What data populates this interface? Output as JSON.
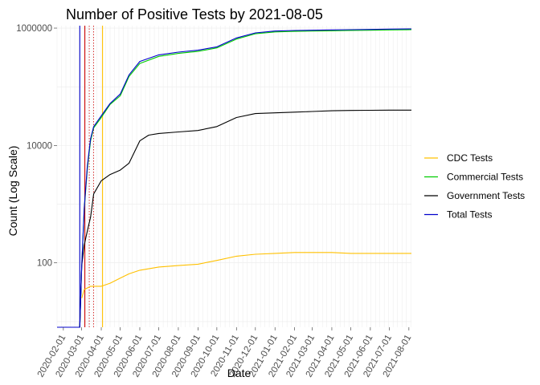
{
  "chart_data": {
    "type": "line",
    "title": "Number of Positive Tests by  2021-08-05",
    "xlabel": "Date",
    "ylabel": "Count (Log Scale)",
    "y_scale": "log10",
    "ylim": [
      8,
      1100000
    ],
    "yticks": [
      100,
      10000,
      1000000
    ],
    "ytick_labels": [
      "100",
      "10000",
      "1000000"
    ],
    "x_scale": "date",
    "xlim": [
      "2020-01-22",
      "2021-08-05"
    ],
    "x_tick_labels_note": "dense, overlapping, rotated ~60 degrees",
    "x_ticks": [
      "2020-02-01",
      "2020-03-01",
      "2020-04-01",
      "2020-05-01",
      "2020-06-01",
      "2020-07-01",
      "2020-08-01",
      "2020-09-01",
      "2020-10-01",
      "2020-11-01",
      "2020-12-01",
      "2021-01-01",
      "2021-02-01",
      "2021-03-01",
      "2021-04-01",
      "2021-05-01",
      "2021-06-01",
      "2021-07-01",
      "2021-08-01"
    ],
    "grid": true,
    "legend": {
      "position": "right"
    },
    "series": [
      {
        "name": "CDC Tests",
        "color": "#ffc000",
        "points": [
          [
            "2020-03-01",
            25
          ],
          [
            "2020-03-05",
            35
          ],
          [
            "2020-03-15",
            40
          ],
          [
            "2020-04-01",
            40
          ],
          [
            "2020-04-15",
            45
          ],
          [
            "2020-05-01",
            55
          ],
          [
            "2020-05-15",
            65
          ],
          [
            "2020-06-01",
            75
          ],
          [
            "2020-07-01",
            85
          ],
          [
            "2020-08-01",
            90
          ],
          [
            "2020-09-01",
            95
          ],
          [
            "2020-10-01",
            110
          ],
          [
            "2020-11-01",
            130
          ],
          [
            "2020-12-01",
            140
          ],
          [
            "2021-01-01",
            145
          ],
          [
            "2021-02-01",
            150
          ],
          [
            "2021-03-01",
            150
          ],
          [
            "2021-04-01",
            150
          ],
          [
            "2021-05-01",
            145
          ],
          [
            "2021-06-01",
            145
          ],
          [
            "2021-07-01",
            145
          ],
          [
            "2021-08-05",
            145
          ]
        ]
      },
      {
        "name": "Commercial Tests",
        "color": "#00cc00",
        "points": [
          [
            "2020-01-22",
            8
          ],
          [
            "2020-02-27",
            8
          ],
          [
            "2020-03-01",
            90
          ],
          [
            "2020-03-05",
            800
          ],
          [
            "2020-03-10",
            4000
          ],
          [
            "2020-03-15",
            12000
          ],
          [
            "2020-03-20",
            20000
          ],
          [
            "2020-04-01",
            30000
          ],
          [
            "2020-04-15",
            50000
          ],
          [
            "2020-05-01",
            70000
          ],
          [
            "2020-05-15",
            150000
          ],
          [
            "2020-06-01",
            250000
          ],
          [
            "2020-07-01",
            330000
          ],
          [
            "2020-08-01",
            370000
          ],
          [
            "2020-09-01",
            400000
          ],
          [
            "2020-10-01",
            460000
          ],
          [
            "2020-11-01",
            650000
          ],
          [
            "2020-12-01",
            800000
          ],
          [
            "2021-01-01",
            860000
          ],
          [
            "2021-02-01",
            880000
          ],
          [
            "2021-03-01",
            890000
          ],
          [
            "2021-04-01",
            900000
          ],
          [
            "2021-05-01",
            910000
          ],
          [
            "2021-06-01",
            920000
          ],
          [
            "2021-07-01",
            930000
          ],
          [
            "2021-08-05",
            940000
          ]
        ]
      },
      {
        "name": "Government Tests",
        "color": "#000000",
        "points": [
          [
            "2020-01-22",
            8
          ],
          [
            "2020-02-27",
            8
          ],
          [
            "2020-03-01",
            90
          ],
          [
            "2020-03-05",
            200
          ],
          [
            "2020-03-10",
            350
          ],
          [
            "2020-03-15",
            600
          ],
          [
            "2020-03-20",
            1500
          ],
          [
            "2020-04-01",
            2500
          ],
          [
            "2020-04-15",
            3200
          ],
          [
            "2020-05-01",
            3800
          ],
          [
            "2020-05-15",
            5000
          ],
          [
            "2020-06-01",
            12000
          ],
          [
            "2020-06-15",
            15000
          ],
          [
            "2020-07-01",
            16000
          ],
          [
            "2020-08-01",
            17000
          ],
          [
            "2020-09-01",
            18000
          ],
          [
            "2020-10-01",
            21000
          ],
          [
            "2020-11-01",
            30000
          ],
          [
            "2020-12-01",
            35000
          ],
          [
            "2021-01-01",
            36000
          ],
          [
            "2021-02-01",
            37000
          ],
          [
            "2021-03-01",
            38000
          ],
          [
            "2021-04-01",
            39000
          ],
          [
            "2021-05-01",
            39500
          ],
          [
            "2021-06-01",
            39800
          ],
          [
            "2021-07-01",
            40000
          ],
          [
            "2021-08-05",
            40000
          ]
        ]
      },
      {
        "name": "Total Tests",
        "color": "#0000cc",
        "points": [
          [
            "2020-01-22",
            8
          ],
          [
            "2020-02-27",
            8
          ],
          [
            "2020-03-01",
            90
          ],
          [
            "2020-03-05",
            850
          ],
          [
            "2020-03-10",
            4500
          ],
          [
            "2020-03-15",
            13000
          ],
          [
            "2020-03-20",
            21000
          ],
          [
            "2020-04-01",
            32000
          ],
          [
            "2020-04-15",
            52000
          ],
          [
            "2020-05-01",
            75000
          ],
          [
            "2020-05-15",
            160000
          ],
          [
            "2020-06-01",
            270000
          ],
          [
            "2020-07-01",
            350000
          ],
          [
            "2020-08-01",
            390000
          ],
          [
            "2020-09-01",
            420000
          ],
          [
            "2020-10-01",
            480000
          ],
          [
            "2020-11-01",
            680000
          ],
          [
            "2020-12-01",
            830000
          ],
          [
            "2021-01-01",
            890000
          ],
          [
            "2021-02-01",
            910000
          ],
          [
            "2021-03-01",
            920000
          ],
          [
            "2021-04-01",
            930000
          ],
          [
            "2021-05-01",
            940000
          ],
          [
            "2021-06-01",
            950000
          ],
          [
            "2021-07-01",
            960000
          ],
          [
            "2021-08-05",
            970000
          ]
        ]
      }
    ],
    "vertical_lines": [
      {
        "x": "2020-02-27",
        "color": "#0000cc",
        "style": "solid"
      },
      {
        "x": "2020-03-06",
        "color": "#cc0000",
        "style": "solid"
      },
      {
        "x": "2020-03-13",
        "color": "#cc0000",
        "style": "dotted"
      },
      {
        "x": "2020-03-20",
        "color": "#cc0000",
        "style": "dotted"
      },
      {
        "x": "2020-04-03",
        "color": "#ffc000",
        "style": "solid"
      }
    ]
  }
}
